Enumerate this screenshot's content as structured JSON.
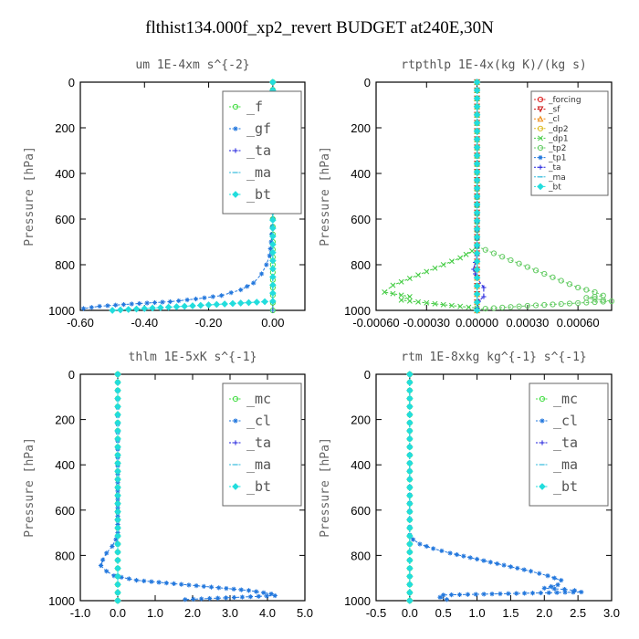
{
  "title": "flthist134.000f_xp2_revert  BUDGET at240E,30N",
  "chart_data": [
    {
      "type": "line",
      "title": "um  1E-4xm s^{-2}",
      "ylabel": "Pressure [hPa]",
      "xlim": [
        -0.6,
        0.1
      ],
      "ylim": [
        1000,
        0
      ],
      "xticks": [
        "-0.60",
        "-0.40",
        "-0.20",
        "0.00"
      ],
      "xtick_values": [
        -0.6,
        -0.4,
        -0.2,
        0.0
      ],
      "yticks": [
        "0",
        "200",
        "400",
        "600",
        "800",
        "1000"
      ],
      "ytick_values": [
        0,
        200,
        400,
        600,
        800,
        1000
      ],
      "legend_position": "top-right",
      "series": [
        {
          "name": "_f",
          "color": "#44dd44",
          "marker": "o",
          "x": [
            0,
            0,
            0,
            0,
            0,
            0
          ],
          "y": [
            0,
            200,
            400,
            600,
            800,
            1000
          ]
        },
        {
          "name": "_gf",
          "color": "#2277dd",
          "marker": "*",
          "x": [
            0,
            0,
            0,
            -0.005,
            -0.01,
            -0.02,
            -0.035,
            -0.06,
            -0.1,
            -0.16,
            -0.24,
            -0.32,
            -0.44,
            -0.54,
            -0.59
          ],
          "y": [
            0,
            200,
            600,
            700,
            760,
            800,
            840,
            880,
            910,
            935,
            950,
            962,
            972,
            982,
            992
          ]
        },
        {
          "name": "_ta",
          "color": "#2222dd",
          "marker": "+",
          "x": [
            0,
            0
          ],
          "y": [
            0,
            1000
          ]
        },
        {
          "name": "_ma",
          "color": "#33bbdd",
          "marker": "-",
          "x": [
            0,
            0
          ],
          "y": [
            0,
            1000
          ]
        },
        {
          "name": "_bt",
          "color": "#22dddd",
          "marker": "D",
          "x": [
            0,
            0,
            -0.5
          ],
          "y": [
            0,
            960,
            1000
          ]
        }
      ]
    },
    {
      "type": "line",
      "title": "rtpthlp  1E-4x(kg K)/(kg s)",
      "ylabel": "Pressure [hPa]",
      "xlim": [
        -0.0006,
        0.0008
      ],
      "ylim": [
        1000,
        0
      ],
      "xticks": [
        "-0.00060",
        "-0.00030",
        "0.00000",
        "0.00030",
        "0.00060"
      ],
      "xtick_values": [
        -0.0006,
        -0.0003,
        0.0,
        0.0003,
        0.0006
      ],
      "yticks": [
        "0",
        "200",
        "400",
        "600",
        "800",
        "1000"
      ],
      "ytick_values": [
        0,
        200,
        400,
        600,
        800,
        1000
      ],
      "legend_position": "top-right",
      "series": [
        {
          "name": "_forcing",
          "color": "#dd2222",
          "marker": "o",
          "x": [
            0,
            0
          ],
          "y": [
            0,
            1000
          ]
        },
        {
          "name": "_sf",
          "color": "#cc1111",
          "marker": "v",
          "x": [
            0,
            0
          ],
          "y": [
            0,
            1000
          ]
        },
        {
          "name": "_cl",
          "color": "#ee8811",
          "marker": "^",
          "x": [
            0,
            0
          ],
          "y": [
            0,
            1000
          ]
        },
        {
          "name": "_dp2",
          "color": "#ddbb22",
          "marker": "o",
          "x": [
            0,
            0
          ],
          "y": [
            0,
            1000
          ]
        },
        {
          "name": "_dp1",
          "color": "#44cc44",
          "marker": "x",
          "x": [
            0,
            0,
            -3e-05,
            -0.0001,
            -0.0002,
            -0.0003,
            -0.0004,
            -0.0005,
            -0.00055,
            -0.0004,
            -0.00045,
            -0.0002,
            0
          ],
          "y": [
            0,
            720,
            740,
            770,
            800,
            830,
            860,
            890,
            920,
            940,
            955,
            975,
            990
          ]
        },
        {
          "name": "_tp2",
          "color": "#66cc66",
          "marker": "o",
          "x": [
            0,
            0,
            0.0001,
            0.0002,
            0.0003,
            0.0004,
            0.0005,
            0.0006,
            0.0007,
            0.00075,
            0.00065,
            0.0008,
            0.0003,
            0
          ],
          "y": [
            0,
            720,
            750,
            780,
            810,
            840,
            870,
            900,
            920,
            935,
            945,
            960,
            980,
            995
          ]
        },
        {
          "name": "_tp1",
          "color": "#2277dd",
          "marker": "*",
          "x": [
            0,
            0
          ],
          "y": [
            0,
            1000
          ]
        },
        {
          "name": "_ta",
          "color": "#2222dd",
          "marker": "+",
          "x": [
            0,
            0,
            -1e-05,
            -2e-05,
            -1e-05,
            0,
            4e-05,
            4e-05,
            1e-05,
            0
          ],
          "y": [
            0,
            760,
            790,
            820,
            840,
            860,
            900,
            940,
            960,
            990
          ]
        },
        {
          "name": "_ma",
          "color": "#33bbdd",
          "marker": "-",
          "x": [
            0,
            0
          ],
          "y": [
            0,
            1000
          ]
        },
        {
          "name": "_bt",
          "color": "#22dddd",
          "marker": "D",
          "x": [
            0,
            0
          ],
          "y": [
            0,
            1000
          ]
        }
      ]
    },
    {
      "type": "line",
      "title": "thlm  1E-5xK s^{-1}",
      "ylabel": "Pressure [hPa]",
      "xlim": [
        -1.0,
        5.0
      ],
      "ylim": [
        1000,
        0
      ],
      "xticks": [
        "-1.0",
        "0.0",
        "1.0",
        "2.0",
        "3.0",
        "4.0",
        "5.0"
      ],
      "xtick_values": [
        -1,
        0,
        1,
        2,
        3,
        4,
        5
      ],
      "yticks": [
        "0",
        "200",
        "400",
        "600",
        "800",
        "1000"
      ],
      "ytick_values": [
        0,
        200,
        400,
        600,
        800,
        1000
      ],
      "legend_position": "top-right",
      "series": [
        {
          "name": "_mc",
          "color": "#44dd44",
          "marker": "o",
          "x": [
            0,
            0,
            0
          ],
          "y": [
            0,
            500,
            1000
          ]
        },
        {
          "name": "_cl",
          "color": "#2277dd",
          "marker": "*",
          "x": [
            0,
            0,
            -0.05,
            -0.15,
            -0.3,
            -0.4,
            -0.45,
            -0.3,
            -0.1,
            0.5,
            1.5,
            2.5,
            3.5,
            4.1,
            4.2,
            1.8
          ],
          "y": [
            0,
            700,
            730,
            760,
            790,
            820,
            845,
            870,
            890,
            910,
            925,
            940,
            955,
            970,
            978,
            995
          ]
        },
        {
          "name": "_ta",
          "color": "#2222dd",
          "marker": "+",
          "x": [
            0,
            0
          ],
          "y": [
            0,
            1000
          ]
        },
        {
          "name": "_ma",
          "color": "#33bbdd",
          "marker": "-",
          "x": [
            0,
            0
          ],
          "y": [
            0,
            1000
          ]
        },
        {
          "name": "_bt",
          "color": "#22dddd",
          "marker": "D",
          "x": [
            0,
            0
          ],
          "y": [
            0,
            1000
          ]
        }
      ]
    },
    {
      "type": "line",
      "title": "rtm  1E-8xkg kg^{-1} s^{-1}",
      "ylabel": "Pressure [hPa]",
      "xlim": [
        -0.5,
        3.0
      ],
      "ylim": [
        1000,
        0
      ],
      "xticks": [
        "-0.5",
        "0.0",
        "0.5",
        "1.0",
        "1.5",
        "2.0",
        "2.5",
        "3.0"
      ],
      "xtick_values": [
        -0.5,
        0,
        0.5,
        1.0,
        1.5,
        2.0,
        2.5,
        3.0
      ],
      "yticks": [
        "0",
        "200",
        "400",
        "600",
        "800",
        "1000"
      ],
      "ytick_values": [
        0,
        200,
        400,
        600,
        800,
        1000
      ],
      "legend_position": "top-right",
      "series": [
        {
          "name": "_mc",
          "color": "#44dd44",
          "marker": "o",
          "x": [
            0,
            0,
            0
          ],
          "y": [
            0,
            500,
            1000
          ]
        },
        {
          "name": "_cl",
          "color": "#2277dd",
          "marker": "*",
          "x": [
            0,
            0,
            0.05,
            0.15,
            0.35,
            0.6,
            0.9,
            1.2,
            1.5,
            1.8,
            2.05,
            2.25,
            2.2,
            2.0,
            2.3,
            2.45,
            2.55,
            0.5,
            0.45,
            0.55
          ],
          "y": [
            0,
            710,
            730,
            750,
            770,
            790,
            810,
            830,
            850,
            870,
            890,
            910,
            930,
            945,
            950,
            955,
            962,
            975,
            985,
            995
          ]
        },
        {
          "name": "_ta",
          "color": "#2222dd",
          "marker": "+",
          "x": [
            0,
            0
          ],
          "y": [
            0,
            1000
          ]
        },
        {
          "name": "_ma",
          "color": "#33bbdd",
          "marker": "-",
          "x": [
            0,
            0
          ],
          "y": [
            0,
            1000
          ]
        },
        {
          "name": "_bt",
          "color": "#22dddd",
          "marker": "D",
          "x": [
            0,
            0
          ],
          "y": [
            0,
            1000
          ]
        }
      ]
    }
  ]
}
